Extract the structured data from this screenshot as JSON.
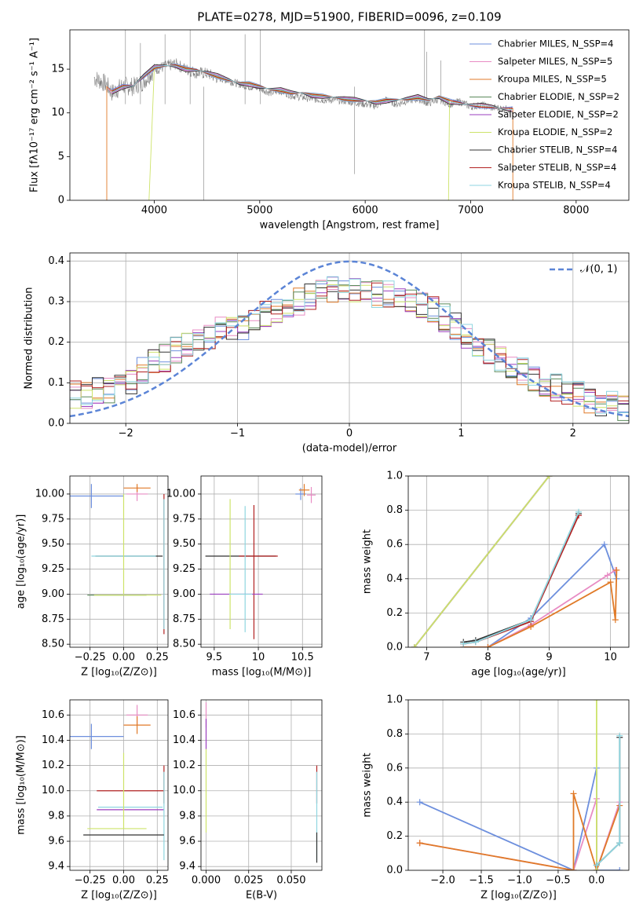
{
  "chart_data": [
    {
      "type": "line",
      "title": "PLATE=0278, MJD=51900, FIBERID=0096, z=0.109",
      "xlabel": "wavelength [Angstrom, rest frame]",
      "ylabel": "Flux [fλ10⁻¹⁷ erg cm⁻² s⁻¹ A⁻¹]",
      "xlim": [
        3200,
        8500
      ],
      "ylim": [
        0,
        19.5
      ],
      "xticks": [
        4000,
        5000,
        6000,
        7000,
        8000
      ],
      "yticks": [
        0,
        5,
        10,
        15
      ],
      "grid": false,
      "legend_position": "top-right",
      "data_series": {
        "name": "",
        "color": "#808080",
        "x": [
          3430,
          3500,
          3550,
          3600,
          3700,
          3800,
          3900,
          4000,
          4100,
          4200,
          4300,
          4400,
          4500,
          4600,
          4700,
          4800,
          4900,
          5000,
          5100,
          5200,
          5300,
          5400,
          5500,
          5600,
          5700,
          5800,
          5900,
          6000,
          6100,
          6200,
          6300,
          6400,
          6500,
          6600,
          6700,
          6800,
          6900,
          7000,
          7100,
          7200,
          7300,
          7400
        ],
        "y": [
          14,
          13.6,
          13.2,
          12.3,
          13.1,
          13.0,
          13.6,
          15.0,
          15.3,
          15.6,
          15.0,
          14.6,
          14.5,
          14.0,
          13.7,
          13.3,
          13.0,
          12.8,
          12.3,
          12.5,
          12.0,
          11.8,
          11.6,
          11.5,
          11.5,
          11.4,
          11.2,
          11.0,
          10.8,
          11.5,
          11.0,
          11.4,
          11.6,
          11.1,
          11.6,
          11.0,
          11.3,
          10.7,
          10.9,
          10.6,
          10.5,
          10.3
        ]
      },
      "series": [
        {
          "name": "Chabrier MILES, N_SSP=4",
          "color": "#6d8fdd"
        },
        {
          "name": "Salpeter MILES, N_SSP=5",
          "color": "#e88cc4"
        },
        {
          "name": "Kroupa MILES, N_SSP=5",
          "color": "#e07a28"
        },
        {
          "name": "Chabrier ELODIE, N_SSP=2",
          "color": "#5a8a5a"
        },
        {
          "name": "Salpeter ELODIE, N_SSP=2",
          "color": "#9b3fbf"
        },
        {
          "name": "Kroupa ELODIE, N_SSP=2",
          "color": "#cde36a"
        },
        {
          "name": "Chabrier STELIB, N_SSP=4",
          "color": "#333333"
        },
        {
          "name": "Salpeter STELIB, N_SSP=4",
          "color": "#b22222"
        },
        {
          "name": "Kroupa STELIB, N_SSP=4",
          "color": "#8fd6e0"
        }
      ],
      "model_x": [
        3550,
        3600,
        3700,
        3800,
        3900,
        4000,
        4100,
        4200,
        4300,
        4400,
        4500,
        4600,
        4700,
        4800,
        4900,
        5000,
        5100,
        5200,
        5300,
        5400,
        5500,
        5600,
        5700,
        5800,
        5900,
        6000,
        6100,
        6200,
        6300,
        6400,
        6500,
        6600,
        6700,
        6800,
        6900,
        7000,
        7100,
        7200,
        7300,
        7400
      ],
      "model_y": [
        13.0,
        12.4,
        13.0,
        13.1,
        14.2,
        15.2,
        15.4,
        15.4,
        15.0,
        14.9,
        14.6,
        14.2,
        13.8,
        13.4,
        13.3,
        13.0,
        12.7,
        12.6,
        12.3,
        12.3,
        12.0,
        11.9,
        11.8,
        11.6,
        11.5,
        11.4,
        11.2,
        11.4,
        11.5,
        11.6,
        11.8,
        11.5,
        11.8,
        11.3,
        11.1,
        10.9,
        10.8,
        10.7,
        10.5,
        10.4
      ]
    },
    {
      "type": "step",
      "xlabel": "(data-model)/error",
      "ylabel": "Normed distribution",
      "xlim": [
        -2.5,
        2.5
      ],
      "ylim": [
        0,
        0.42
      ],
      "xticks": [
        -2,
        -1,
        0,
        1,
        2
      ],
      "yticks": [
        0.0,
        0.1,
        0.2,
        0.3,
        0.4
      ],
      "grid": true,
      "legend_position": "top-right",
      "gaussian": {
        "name": "𝒩(0, 1)",
        "color": "#5b84d6"
      },
      "bin_width": 0.1,
      "bin_start": -2.5,
      "base_hist": [
        0.07,
        0.07,
        0.08,
        0.08,
        0.09,
        0.1,
        0.13,
        0.15,
        0.16,
        0.18,
        0.19,
        0.2,
        0.21,
        0.23,
        0.24,
        0.24,
        0.25,
        0.27,
        0.28,
        0.29,
        0.3,
        0.31,
        0.32,
        0.33,
        0.33,
        0.33,
        0.32,
        0.32,
        0.32,
        0.31,
        0.3,
        0.29,
        0.28,
        0.26,
        0.24,
        0.22,
        0.2,
        0.18,
        0.16,
        0.14,
        0.13,
        0.11,
        0.1,
        0.09,
        0.08,
        0.07,
        0.06,
        0.05,
        0.05,
        0.04
      ],
      "series_colors": [
        "#6d8fdd",
        "#e88cc4",
        "#e07a28",
        "#5a8a5a",
        "#9b3fbf",
        "#cde36a",
        "#333333",
        "#b22222",
        "#8fd6e0"
      ]
    },
    {
      "type": "errorbar",
      "xlabel": "Z [log₁₀(Z/Z⊙)]",
      "ylabel": "age  [log₁₀(age/yr)]",
      "xlim": [
        -0.4,
        0.33
      ],
      "ylim": [
        8.47,
        10.18
      ],
      "xticks": [
        -0.25,
        0.0,
        0.25
      ],
      "xtick_labels": [
        "−0.25",
        "0.00",
        "0.25"
      ],
      "yticks": [
        8.5,
        8.75,
        9.0,
        9.25,
        9.5,
        9.75,
        10.0
      ],
      "grid": true,
      "points": [
        {
          "x": -0.24,
          "y": 9.98,
          "xerr": 0.24,
          "yerr": 0.12,
          "color": "#6d8fdd"
        },
        {
          "x": 0.1,
          "y": 10.0,
          "xerr": 0.08,
          "yerr": 0.07,
          "color": "#e88cc4"
        },
        {
          "x": 0.1,
          "y": 10.06,
          "xerr": 0.1,
          "yerr": 0.04,
          "color": "#e07a28"
        },
        {
          "x": 0.3,
          "y": 9.3,
          "xerr": 0.0,
          "yerr": 0.7,
          "color": "#b22222"
        },
        {
          "x": 0.3,
          "y": 9.3,
          "xerr": 0.0,
          "yerr": 0.65,
          "color": "#8fd6e0"
        },
        {
          "x": 0.04,
          "y": 9.38,
          "xerr": 0.25,
          "yerr": 0.0,
          "color": "#333333"
        },
        {
          "x": 0.0,
          "y": 9.38,
          "xerr": 0.24,
          "yerr": 0.0,
          "color": "#8fd6e0"
        },
        {
          "x": -0.05,
          "y": 8.99,
          "xerr": 0.22,
          "yerr": 0.0,
          "color": "#5a8a5a"
        },
        {
          "x": 0.0,
          "y": 9.5,
          "xerr": 0.0,
          "yerr": 0.5,
          "color": "#cde36a"
        },
        {
          "x": 0.03,
          "y": 8.99,
          "xerr": 0.25,
          "yerr": 0.0,
          "color": "#cde36a"
        }
      ]
    },
    {
      "type": "errorbar",
      "xlabel": "mass [log₁₀(M/M⊙)]",
      "ylabel": "",
      "xlim": [
        9.35,
        10.72
      ],
      "ylim": [
        8.47,
        10.18
      ],
      "xticks": [
        9.5,
        10.0,
        10.5
      ],
      "yticks": [
        8.5,
        8.75,
        9.0,
        9.25,
        9.5,
        9.75,
        10.0
      ],
      "grid": true,
      "points": [
        {
          "x": 10.48,
          "y": 10.0,
          "xerr": 0.06,
          "yerr": 0.06,
          "color": "#6d8fdd"
        },
        {
          "x": 10.6,
          "y": 9.99,
          "xerr": 0.05,
          "yerr": 0.08,
          "color": "#e88cc4"
        },
        {
          "x": 10.52,
          "y": 10.04,
          "xerr": 0.06,
          "yerr": 0.06,
          "color": "#e07a28"
        },
        {
          "x": 9.8,
          "y": 9.38,
          "xerr": 0.4,
          "yerr": 0.0,
          "color": "#333333"
        },
        {
          "x": 10.0,
          "y": 9.38,
          "xerr": 0.22,
          "yerr": 0.0,
          "color": "#b22222"
        },
        {
          "x": 9.68,
          "y": 9.3,
          "xerr": 0.0,
          "yerr": 0.65,
          "color": "#cde36a"
        },
        {
          "x": 9.95,
          "y": 9.22,
          "xerr": 0.0,
          "yerr": 0.67,
          "color": "#b22222"
        },
        {
          "x": 9.85,
          "y": 9.25,
          "xerr": 0.0,
          "yerr": 0.63,
          "color": "#8fd6e0"
        },
        {
          "x": 9.75,
          "y": 9.0,
          "xerr": 0.3,
          "yerr": 0.0,
          "color": "#9b3fbf"
        },
        {
          "x": 9.8,
          "y": 9.0,
          "xerr": 0.13,
          "yerr": 0.0,
          "color": "#8fd6e0"
        }
      ]
    },
    {
      "type": "line",
      "xlabel": "age  [log₁₀(age/yr)]",
      "ylabel": "mass weight",
      "xlim": [
        6.7,
        10.3
      ],
      "ylim": [
        0,
        1.0
      ],
      "xticks": [
        7,
        8,
        9,
        10
      ],
      "yticks": [
        0.0,
        0.2,
        0.4,
        0.6,
        0.8,
        1.0
      ],
      "grid": true,
      "series": [
        {
          "name": "Chabrier MILES",
          "color": "#6d8fdd",
          "x": [
            7.6,
            8.0,
            8.7,
            9.9,
            10.1
          ],
          "y": [
            0.0,
            0.0,
            0.17,
            0.6,
            0.4
          ]
        },
        {
          "name": "Salpeter MILES",
          "color": "#e88cc4",
          "x": [
            7.6,
            8.0,
            8.7,
            9.95,
            10.08
          ],
          "y": [
            0.0,
            0.0,
            0.13,
            0.42,
            0.45
          ]
        },
        {
          "name": "Kroupa MILES",
          "color": "#e07a28",
          "x": [
            7.6,
            8.0,
            8.7,
            10.0,
            10.08,
            10.1
          ],
          "y": [
            0.0,
            0.0,
            0.12,
            0.38,
            0.16,
            0.45
          ]
        },
        {
          "name": "Chabrier ELODIE",
          "color": "#5a8a5a",
          "x": [
            6.8,
            9.0
          ],
          "y": [
            0.0,
            1.0
          ]
        },
        {
          "name": "Salpeter ELODIE",
          "color": "#9b3fbf",
          "x": [
            6.8,
            9.0
          ],
          "y": [
            0.0,
            1.0
          ]
        },
        {
          "name": "Kroupa ELODIE",
          "color": "#cde36a",
          "x": [
            6.8,
            9.0
          ],
          "y": [
            0.0,
            1.0
          ]
        },
        {
          "name": "Chabrier STELIB",
          "color": "#333333",
          "x": [
            7.6,
            7.8,
            8.7,
            9.48
          ],
          "y": [
            0.03,
            0.04,
            0.16,
            0.78
          ]
        },
        {
          "name": "Salpeter STELIB",
          "color": "#b22222",
          "x": [
            7.6,
            7.8,
            8.7,
            9.48
          ],
          "y": [
            0.02,
            0.03,
            0.15,
            0.77
          ]
        },
        {
          "name": "Kroupa STELIB",
          "color": "#8fd6e0",
          "x": [
            7.6,
            7.8,
            8.7,
            9.48
          ],
          "y": [
            0.02,
            0.03,
            0.16,
            0.79
          ]
        }
      ]
    },
    {
      "type": "errorbar",
      "xlabel": "Z [log₁₀(Z/Z⊙)]",
      "ylabel": "mass [log₁₀(M/M⊙)]",
      "xlim": [
        -0.4,
        0.33
      ],
      "ylim": [
        9.37,
        10.72
      ],
      "xticks": [
        -0.25,
        0.0,
        0.25
      ],
      "xtick_labels": [
        "−0.25",
        "0.00",
        "0.25"
      ],
      "yticks": [
        9.4,
        9.6,
        9.8,
        10.0,
        10.2,
        10.4,
        10.6
      ],
      "grid": true,
      "points": [
        {
          "x": -0.24,
          "y": 10.43,
          "xerr": 0.24,
          "yerr": 0.1,
          "color": "#6d8fdd"
        },
        {
          "x": 0.1,
          "y": 10.6,
          "xerr": 0.08,
          "yerr": 0.08,
          "color": "#e88cc4"
        },
        {
          "x": 0.1,
          "y": 10.52,
          "xerr": 0.1,
          "yerr": 0.07,
          "color": "#e07a28"
        },
        {
          "x": 0.05,
          "y": 10.0,
          "xerr": 0.25,
          "yerr": 0.0,
          "color": "#b22222"
        },
        {
          "x": 0.3,
          "y": 10.05,
          "xerr": 0.0,
          "yerr": 0.15,
          "color": "#b22222"
        },
        {
          "x": 0.05,
          "y": 9.87,
          "xerr": 0.24,
          "yerr": 0.0,
          "color": "#8fd6e0"
        },
        {
          "x": 0.05,
          "y": 9.85,
          "xerr": 0.25,
          "yerr": 0.0,
          "color": "#9b3fbf"
        },
        {
          "x": 0.3,
          "y": 9.8,
          "xerr": 0.0,
          "yerr": 0.35,
          "color": "#8fd6e0"
        },
        {
          "x": 0.0,
          "y": 10.0,
          "xerr": 0.0,
          "yerr": 0.3,
          "color": "#cde36a"
        },
        {
          "x": -0.05,
          "y": 9.7,
          "xerr": 0.22,
          "yerr": 0.0,
          "color": "#cde36a"
        },
        {
          "x": 0.0,
          "y": 9.65,
          "xerr": 0.3,
          "yerr": 0.0,
          "color": "#333333"
        }
      ]
    },
    {
      "type": "errorbar",
      "xlabel": "E(B-V)",
      "ylabel": "",
      "xlim": [
        -0.003,
        0.068
      ],
      "ylim": [
        9.37,
        10.72
      ],
      "xticks": [
        0.0,
        0.025,
        0.05
      ],
      "xtick_labels": [
        "0.000",
        "0.025",
        "0.050"
      ],
      "yticks": [
        9.4,
        9.6,
        9.8,
        10.0,
        10.2,
        10.4,
        10.6
      ],
      "grid": true,
      "points": [
        {
          "x": 0.0,
          "y": 10.6,
          "xerr": 0.0,
          "yerr": 0.1,
          "color": "#e88cc4"
        },
        {
          "x": 0.0,
          "y": 10.45,
          "xerr": 0.0,
          "yerr": 0.12,
          "color": "#9b3fbf"
        },
        {
          "x": 0.0,
          "y": 10.0,
          "xerr": 0.0,
          "yerr": 0.33,
          "color": "#cde36a"
        },
        {
          "x": 0.065,
          "y": 10.05,
          "xerr": 0.0,
          "yerr": 0.15,
          "color": "#b22222"
        },
        {
          "x": 0.065,
          "y": 9.8,
          "xerr": 0.0,
          "yerr": 0.35,
          "color": "#8fd6e0"
        },
        {
          "x": 0.065,
          "y": 9.55,
          "xerr": 0.0,
          "yerr": 0.12,
          "color": "#333333"
        }
      ]
    },
    {
      "type": "line",
      "xlabel": "Z [log₁₀(Z/Z⊙)]",
      "ylabel": "mass weight",
      "xlim": [
        -2.45,
        0.42
      ],
      "ylim": [
        0,
        1.0
      ],
      "xticks": [
        -2.0,
        -1.5,
        -1.0,
        -0.5,
        0.0
      ],
      "xtick_labels": [
        "−2.0",
        "−1.5",
        "−1.0",
        "−0.5",
        "0.0"
      ],
      "yticks": [
        0.0,
        0.2,
        0.4,
        0.6,
        0.8,
        1.0
      ],
      "grid": true,
      "series": [
        {
          "name": "Chabrier MILES",
          "color": "#6d8fdd",
          "x": [
            -2.3,
            -0.3,
            0.0,
            0.0,
            0.3
          ],
          "y": [
            0.4,
            0.0,
            0.6,
            0.0,
            0.0
          ]
        },
        {
          "name": "Salpeter MILES",
          "color": "#e88cc4",
          "x": [
            -2.3,
            -0.3,
            0.0,
            0.0,
            0.3
          ],
          "y": [
            0.16,
            0.0,
            0.42,
            0.0,
            0.4
          ]
        },
        {
          "name": "Kroupa MILES",
          "color": "#e07a28",
          "x": [
            -2.3,
            -0.3,
            -0.3,
            0.0,
            0.3
          ],
          "y": [
            0.16,
            0.0,
            0.45,
            0.0,
            0.38
          ]
        },
        {
          "name": "Kroupa ELODIE",
          "color": "#cde36a",
          "x": [
            0.0,
            0.0
          ],
          "y": [
            0.0,
            1.0
          ]
        },
        {
          "name": "Chabrier STELIB",
          "color": "#333333",
          "x": [
            0.0,
            0.3,
            0.3
          ],
          "y": [
            0.03,
            0.16,
            0.78
          ]
        },
        {
          "name": "Kroupa STELIB",
          "color": "#8fd6e0",
          "x": [
            0.0,
            0.3,
            0.3
          ],
          "y": [
            0.03,
            0.16,
            0.79
          ]
        }
      ]
    }
  ]
}
